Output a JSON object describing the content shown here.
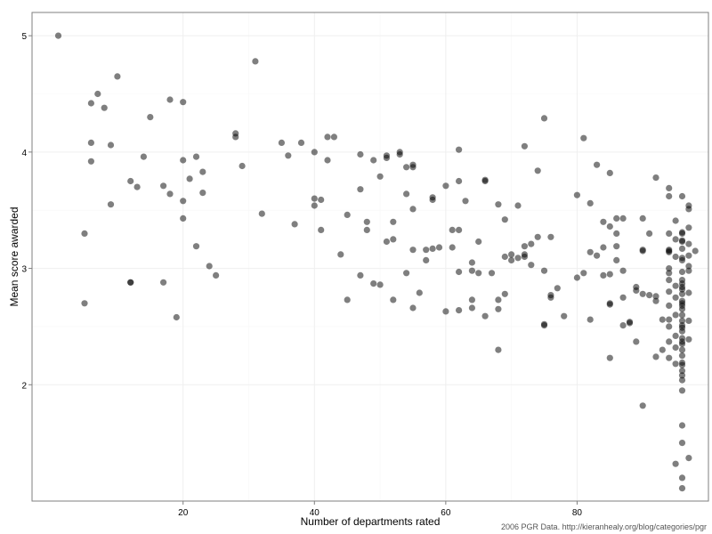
{
  "chart_data": {
    "type": "scatter",
    "xlabel": "Number of departments rated",
    "ylabel": "Mean score awarded",
    "caption": "2006 PGR Data. http://kieranhealy.org/blog/categories/pgr",
    "xlim": [
      -3,
      100
    ],
    "ylim": [
      1.0,
      5.2
    ],
    "x_ticks": [
      20,
      40,
      60,
      80
    ],
    "y_ticks": [
      2,
      3,
      4,
      5
    ],
    "grid": true,
    "point_color": "#000000",
    "point_opacity": 0.5,
    "points": [
      [
        1,
        5.0
      ],
      [
        5,
        3.3
      ],
      [
        5,
        2.7
      ],
      [
        6,
        4.42
      ],
      [
        6,
        4.08
      ],
      [
        6,
        3.92
      ],
      [
        7,
        4.5
      ],
      [
        8,
        4.38
      ],
      [
        9,
        4.06
      ],
      [
        9,
        3.55
      ],
      [
        10,
        4.65
      ],
      [
        12,
        3.75
      ],
      [
        12,
        2.88
      ],
      [
        12,
        2.88
      ],
      [
        13,
        3.7
      ],
      [
        14,
        3.96
      ],
      [
        15,
        4.3
      ],
      [
        17,
        3.71
      ],
      [
        17,
        2.88
      ],
      [
        18,
        4.45
      ],
      [
        18,
        3.64
      ],
      [
        19,
        2.58
      ],
      [
        20,
        4.43
      ],
      [
        20,
        3.93
      ],
      [
        20,
        3.58
      ],
      [
        20,
        3.43
      ],
      [
        21,
        3.77
      ],
      [
        22,
        3.96
      ],
      [
        22,
        3.19
      ],
      [
        23,
        3.83
      ],
      [
        23,
        3.65
      ],
      [
        24,
        3.02
      ],
      [
        25,
        2.94
      ],
      [
        28,
        4.16
      ],
      [
        28,
        4.13
      ],
      [
        29,
        3.88
      ],
      [
        31,
        4.78
      ],
      [
        32,
        3.47
      ],
      [
        35,
        4.08
      ],
      [
        36,
        3.97
      ],
      [
        37,
        3.38
      ],
      [
        38,
        4.08
      ],
      [
        40,
        4.0
      ],
      [
        40,
        3.6
      ],
      [
        40,
        3.54
      ],
      [
        41,
        3.59
      ],
      [
        41,
        3.33
      ],
      [
        42,
        4.13
      ],
      [
        42,
        3.93
      ],
      [
        43,
        4.13
      ],
      [
        44,
        3.12
      ],
      [
        45,
        3.46
      ],
      [
        45,
        2.73
      ],
      [
        47,
        3.98
      ],
      [
        47,
        3.68
      ],
      [
        47,
        2.94
      ],
      [
        48,
        3.4
      ],
      [
        48,
        3.33
      ],
      [
        49,
        3.93
      ],
      [
        49,
        2.87
      ],
      [
        50,
        3.79
      ],
      [
        50,
        2.86
      ],
      [
        51,
        3.97
      ],
      [
        51,
        3.95
      ],
      [
        51,
        3.23
      ],
      [
        52,
        3.4
      ],
      [
        52,
        3.25
      ],
      [
        52,
        2.73
      ],
      [
        53,
        4.0
      ],
      [
        53,
        3.98
      ],
      [
        54,
        3.87
      ],
      [
        54,
        3.64
      ],
      [
        54,
        2.96
      ],
      [
        55,
        3.89
      ],
      [
        55,
        3.87
      ],
      [
        55,
        3.51
      ],
      [
        55,
        3.16
      ],
      [
        55,
        2.66
      ],
      [
        56,
        2.79
      ],
      [
        57,
        3.16
      ],
      [
        57,
        3.07
      ],
      [
        58,
        3.61
      ],
      [
        58,
        3.59
      ],
      [
        58,
        3.17
      ],
      [
        59,
        3.18
      ],
      [
        60,
        3.71
      ],
      [
        60,
        2.63
      ],
      [
        61,
        3.33
      ],
      [
        61,
        3.18
      ],
      [
        62,
        4.02
      ],
      [
        62,
        3.75
      ],
      [
        62,
        3.33
      ],
      [
        62,
        2.97
      ],
      [
        62,
        2.64
      ],
      [
        63,
        3.58
      ],
      [
        64,
        3.05
      ],
      [
        64,
        2.98
      ],
      [
        64,
        2.73
      ],
      [
        64,
        2.66
      ],
      [
        65,
        3.23
      ],
      [
        65,
        2.96
      ],
      [
        66,
        3.76
      ],
      [
        66,
        3.75
      ],
      [
        66,
        2.59
      ],
      [
        67,
        2.96
      ],
      [
        68,
        3.55
      ],
      [
        68,
        2.73
      ],
      [
        68,
        2.65
      ],
      [
        68,
        2.3
      ],
      [
        69,
        3.42
      ],
      [
        69,
        3.1
      ],
      [
        69,
        2.78
      ],
      [
        70,
        3.12
      ],
      [
        70,
        3.07
      ],
      [
        71,
        3.54
      ],
      [
        71,
        3.09
      ],
      [
        72,
        4.05
      ],
      [
        72,
        3.19
      ],
      [
        72,
        3.12
      ],
      [
        72,
        3.1
      ],
      [
        73,
        3.21
      ],
      [
        73,
        3.03
      ],
      [
        74,
        3.84
      ],
      [
        74,
        3.27
      ],
      [
        75,
        4.29
      ],
      [
        75,
        2.98
      ],
      [
        75,
        2.52
      ],
      [
        75,
        2.51
      ],
      [
        76,
        3.27
      ],
      [
        76,
        2.77
      ],
      [
        76,
        2.75
      ],
      [
        77,
        2.83
      ],
      [
        78,
        2.59
      ],
      [
        80,
        3.63
      ],
      [
        80,
        2.92
      ],
      [
        81,
        4.12
      ],
      [
        81,
        2.96
      ],
      [
        82,
        3.56
      ],
      [
        82,
        3.14
      ],
      [
        82,
        2.56
      ],
      [
        83,
        3.89
      ],
      [
        83,
        3.11
      ],
      [
        84,
        3.4
      ],
      [
        84,
        3.18
      ],
      [
        84,
        2.94
      ],
      [
        85,
        3.82
      ],
      [
        85,
        3.36
      ],
      [
        85,
        2.95
      ],
      [
        85,
        2.7
      ],
      [
        85,
        2.69
      ],
      [
        85,
        2.23
      ],
      [
        86,
        3.43
      ],
      [
        86,
        3.3
      ],
      [
        86,
        3.19
      ],
      [
        86,
        3.07
      ],
      [
        87,
        3.43
      ],
      [
        87,
        2.98
      ],
      [
        87,
        2.75
      ],
      [
        87,
        2.51
      ],
      [
        88,
        2.54
      ],
      [
        88,
        2.53
      ],
      [
        89,
        2.84
      ],
      [
        89,
        2.81
      ],
      [
        89,
        2.37
      ],
      [
        90,
        3.43
      ],
      [
        90,
        3.16
      ],
      [
        90,
        3.15
      ],
      [
        90,
        2.78
      ],
      [
        90,
        1.82
      ],
      [
        91,
        3.3
      ],
      [
        91,
        2.77
      ],
      [
        92,
        3.78
      ],
      [
        92,
        2.76
      ],
      [
        92,
        2.72
      ],
      [
        92,
        2.24
      ],
      [
        93,
        2.56
      ],
      [
        93,
        2.3
      ],
      [
        94,
        3.69
      ],
      [
        94,
        3.62
      ],
      [
        94,
        3.3
      ],
      [
        94,
        3.16
      ],
      [
        94,
        3.15
      ],
      [
        94,
        3.14
      ],
      [
        94,
        3.0
      ],
      [
        94,
        2.96
      ],
      [
        94,
        2.9
      ],
      [
        94,
        2.8
      ],
      [
        94,
        2.68
      ],
      [
        94,
        2.56
      ],
      [
        94,
        2.5
      ],
      [
        94,
        2.37
      ],
      [
        94,
        2.23
      ],
      [
        95,
        3.41
      ],
      [
        95,
        3.25
      ],
      [
        95,
        3.1
      ],
      [
        95,
        2.85
      ],
      [
        95,
        2.75
      ],
      [
        95,
        2.6
      ],
      [
        95,
        2.42
      ],
      [
        95,
        2.32
      ],
      [
        95,
        2.18
      ],
      [
        95,
        1.32
      ],
      [
        96,
        3.62
      ],
      [
        96,
        3.31
      ],
      [
        96,
        3.3
      ],
      [
        96,
        3.24
      ],
      [
        96,
        3.23
      ],
      [
        96,
        3.17
      ],
      [
        96,
        3.09
      ],
      [
        96,
        3.07
      ],
      [
        96,
        2.97
      ],
      [
        96,
        2.9
      ],
      [
        96,
        2.87
      ],
      [
        96,
        2.84
      ],
      [
        96,
        2.82
      ],
      [
        96,
        2.78
      ],
      [
        96,
        2.72
      ],
      [
        96,
        2.7
      ],
      [
        96,
        2.68
      ],
      [
        96,
        2.65
      ],
      [
        96,
        2.6
      ],
      [
        96,
        2.55
      ],
      [
        96,
        2.51
      ],
      [
        96,
        2.49
      ],
      [
        96,
        2.46
      ],
      [
        96,
        2.4
      ],
      [
        96,
        2.37
      ],
      [
        96,
        2.35
      ],
      [
        96,
        2.3
      ],
      [
        96,
        2.25
      ],
      [
        96,
        2.19
      ],
      [
        96,
        2.17
      ],
      [
        96,
        2.12
      ],
      [
        96,
        2.08
      ],
      [
        96,
        2.04
      ],
      [
        96,
        1.95
      ],
      [
        96,
        1.65
      ],
      [
        96,
        1.5
      ],
      [
        96,
        1.2
      ],
      [
        96,
        1.11
      ],
      [
        97,
        3.54
      ],
      [
        97,
        3.51
      ],
      [
        97,
        3.35
      ],
      [
        97,
        3.21
      ],
      [
        97,
        3.11
      ],
      [
        97,
        3.02
      ],
      [
        97,
        2.98
      ],
      [
        97,
        2.79
      ],
      [
        97,
        2.55
      ],
      [
        97,
        2.39
      ],
      [
        97,
        1.37
      ],
      [
        98,
        3.15
      ]
    ]
  }
}
